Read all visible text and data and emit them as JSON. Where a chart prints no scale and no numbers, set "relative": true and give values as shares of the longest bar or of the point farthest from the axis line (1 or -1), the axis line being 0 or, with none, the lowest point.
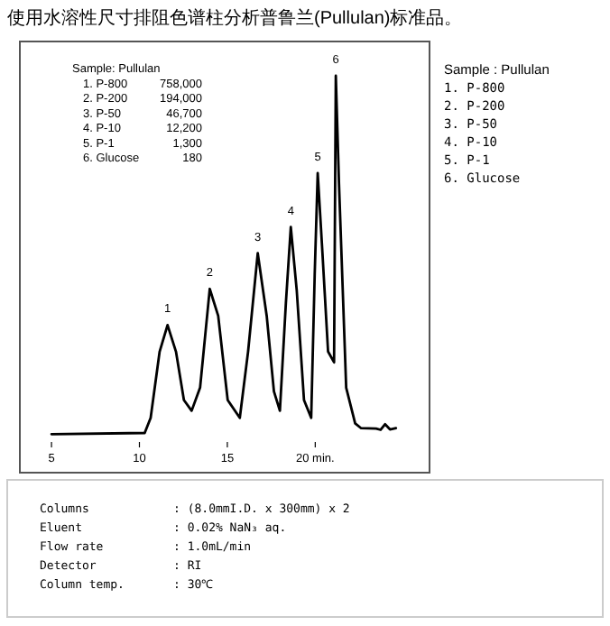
{
  "chart_data": [
    {
      "type": "line",
      "title": "使用水溶性尺寸排阻色谱柱分析普鲁兰(Pullulan)标准品。",
      "relative": true,
      "xlim": [
        3.2,
        26.5
      ],
      "xticks": [
        5,
        10,
        15,
        {
          "value": 20,
          "label": "20 min."
        }
      ],
      "series": [
        {
          "color": "#000000",
          "x": [
            5.0,
            10.3,
            10.64,
            11.15,
            11.6,
            12.08,
            12.53,
            12.97,
            13.45,
            14.0,
            14.48,
            15.02,
            15.71,
            16.18,
            16.73,
            17.24,
            17.65,
            17.99,
            18.33,
            18.61,
            18.95,
            19.36,
            19.77,
            19.97,
            20.14,
            20.38,
            20.73,
            21.07,
            21.17,
            21.35,
            21.76,
            22.27,
            22.61,
            23.46,
            23.72,
            23.97,
            24.25,
            24.59
          ],
          "values": [
            0.097,
            0.1,
            0.138,
            0.305,
            0.372,
            0.305,
            0.183,
            0.156,
            0.214,
            0.463,
            0.395,
            0.183,
            0.138,
            0.305,
            0.553,
            0.395,
            0.205,
            0.156,
            0.427,
            0.619,
            0.458,
            0.183,
            0.138,
            0.5,
            0.755,
            0.576,
            0.305,
            0.278,
            1.0,
            0.729,
            0.214,
            0.124,
            0.112,
            0.111,
            0.108,
            0.122,
            0.109,
            0.112
          ]
        }
      ],
      "annotations": [
        {
          "text": "1",
          "x": 11.6,
          "y": 0.372
        },
        {
          "text": "2",
          "x": 14.0,
          "y": 0.463
        },
        {
          "text": "3",
          "x": 16.73,
          "y": 0.553
        },
        {
          "text": "4",
          "x": 18.61,
          "y": 0.619
        },
        {
          "text": "5",
          "x": 20.14,
          "y": 0.755
        },
        {
          "text": "6",
          "x": 21.17,
          "y": 1.0
        },
        "Sample: Pullulan",
        "1. P-800",
        "758,000",
        "2. P-200",
        "194,000",
        "3. P-50",
        "46,700",
        "4. P-10",
        "12,200",
        "5. P-1",
        "1,300",
        "6. Glucose",
        "180"
      ]
    },
    {
      "type": "other",
      "annotations": [
        "Sample : Pullulan",
        "1. P-800",
        "2. P-200",
        "3. P-50",
        "4. P-10",
        "5. P-1",
        "6. Glucose"
      ]
    },
    {
      "type": "other",
      "annotations": [
        "Columns",
        ": (8.0mmI.D. x 300mm) x 2",
        "Eluent",
        ": 0.02% NaN₃ aq.",
        "Flow rate",
        ": 1.0mL/min",
        "Detector",
        ": RI",
        "Column temp.",
        ": 30℃"
      ]
    }
  ]
}
